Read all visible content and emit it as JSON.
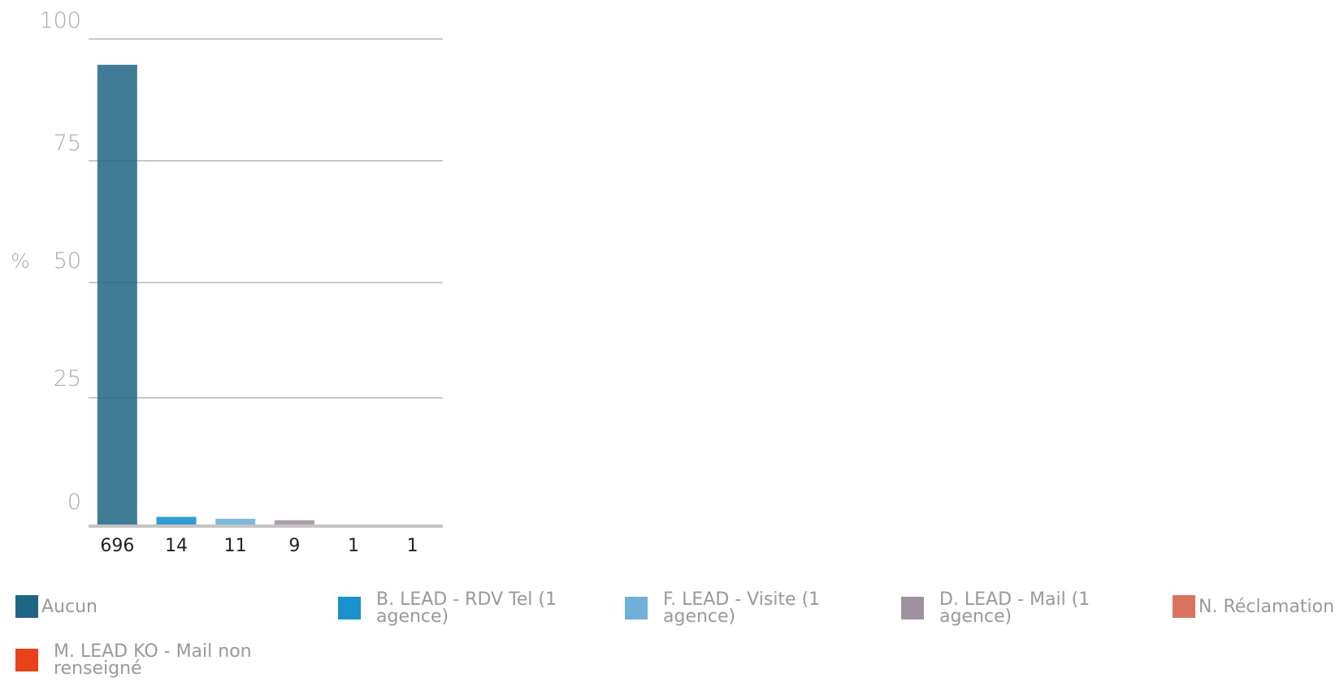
{
  "chart_data": {
    "type": "bar",
    "ylabel": "%",
    "ylim": [
      0,
      100
    ],
    "yticks": [
      "0",
      "25",
      "50",
      "75",
      "100"
    ],
    "categories": [
      "696",
      "14",
      "11",
      "9",
      "1",
      "1"
    ],
    "values": [
      94.7,
      1.9,
      1.5,
      1.2,
      0.14,
      0.14
    ],
    "colors": [
      "#1f6584",
      "#1a91cc",
      "#6fb0d9",
      "#a0909f",
      "#d9735d",
      "#e8421a"
    ],
    "legend": [
      {
        "label": "Aucun",
        "color": "#1f6584"
      },
      {
        "label": "B. LEAD - RDV Tel (1 agence)",
        "color": "#1a91cc"
      },
      {
        "label": "F. LEAD - Visite (1 agence)",
        "color": "#6fb0d9"
      },
      {
        "label": "D. LEAD - Mail (1 agence)",
        "color": "#a0909f"
      },
      {
        "label": "N. Réclamation",
        "color": "#d9735d"
      },
      {
        "label": "M. LEAD KO - Mail non renseigné",
        "color": "#e8421a"
      }
    ],
    "legend_position": "bottom",
    "grid": true
  }
}
